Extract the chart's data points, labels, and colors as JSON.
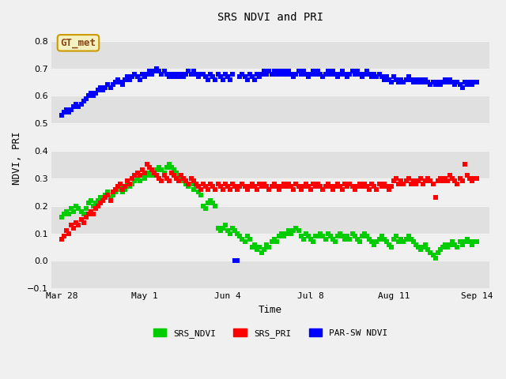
{
  "title": "SRS NDVI and PRI",
  "xlabel": "Time",
  "ylabel": "NDVI, PRI",
  "ylim": [
    -0.1,
    0.85
  ],
  "yticks": [
    -0.1,
    0.0,
    0.1,
    0.2,
    0.3,
    0.4,
    0.5,
    0.6,
    0.7,
    0.8
  ],
  "xtick_labels": [
    "Mar 28",
    "May 1",
    "Jun 4",
    "Jul 8",
    "Aug 11",
    "Sep 14"
  ],
  "xtick_days": [
    87,
    121,
    155,
    189,
    223,
    257
  ],
  "background_color": "#f0f0f0",
  "band_color": "#e0e0e0",
  "gt_met_label": "GT_met",
  "legend_labels": [
    "SRS_NDVI",
    "SRS_PRI",
    "PAR-SW NDVI"
  ],
  "legend_colors": [
    "#00cc00",
    "#ff0000",
    "#0000ff"
  ],
  "marker_size": 4,
  "ndvi_green": "#00cc00",
  "pri_red": "#ff0000",
  "par_blue": "#0000ff",
  "srs_ndvi": {
    "days": [
      87,
      88,
      89,
      90,
      91,
      92,
      93,
      94,
      95,
      96,
      97,
      98,
      99,
      100,
      101,
      102,
      103,
      104,
      105,
      106,
      107,
      108,
      109,
      110,
      111,
      112,
      113,
      114,
      115,
      116,
      117,
      118,
      119,
      120,
      121,
      122,
      123,
      124,
      125,
      126,
      127,
      128,
      129,
      130,
      131,
      132,
      133,
      134,
      135,
      136,
      137,
      138,
      139,
      140,
      141,
      142,
      143,
      144,
      145,
      146,
      147,
      148,
      149,
      150,
      151,
      152,
      153,
      154,
      155,
      156,
      157,
      158,
      159,
      160,
      161,
      162,
      163,
      164,
      165,
      166,
      167,
      168,
      169,
      170,
      171,
      172,
      173,
      174,
      175,
      176,
      177,
      178,
      179,
      180,
      181,
      182,
      183,
      184,
      185,
      186,
      187,
      188,
      189,
      190,
      191,
      192,
      193,
      194,
      195,
      196,
      197,
      198,
      199,
      200,
      201,
      202,
      203,
      204,
      205,
      206,
      207,
      208,
      209,
      210,
      211,
      212,
      213,
      214,
      215,
      216,
      217,
      218,
      219,
      220,
      221,
      222,
      223,
      224,
      225,
      226,
      227,
      228,
      229,
      230,
      231,
      232,
      233,
      234,
      235,
      236,
      237,
      238,
      239,
      240,
      241,
      242,
      243,
      244,
      245,
      246,
      247,
      248,
      249,
      250,
      251,
      252,
      253,
      254,
      255,
      256,
      257
    ],
    "values": [
      0.16,
      0.17,
      0.18,
      0.17,
      0.19,
      0.18,
      0.2,
      0.19,
      0.18,
      0.17,
      0.19,
      0.21,
      0.22,
      0.2,
      0.21,
      0.22,
      0.23,
      0.22,
      0.24,
      0.25,
      0.23,
      0.24,
      0.25,
      0.26,
      0.27,
      0.25,
      0.26,
      0.28,
      0.27,
      0.28,
      0.29,
      0.3,
      0.29,
      0.31,
      0.3,
      0.31,
      0.32,
      0.31,
      0.32,
      0.33,
      0.34,
      0.33,
      0.32,
      0.34,
      0.35,
      0.34,
      0.33,
      0.32,
      0.31,
      0.3,
      0.29,
      0.28,
      0.27,
      0.28,
      0.26,
      0.27,
      0.25,
      0.24,
      0.2,
      0.19,
      0.21,
      0.22,
      0.21,
      0.2,
      0.12,
      0.11,
      0.12,
      0.13,
      0.11,
      0.1,
      0.12,
      0.11,
      0.1,
      0.09,
      0.08,
      0.07,
      0.09,
      0.08,
      0.05,
      0.06,
      0.04,
      0.05,
      0.03,
      0.04,
      0.06,
      0.05,
      0.07,
      0.08,
      0.07,
      0.09,
      0.1,
      0.09,
      0.1,
      0.11,
      0.1,
      0.11,
      0.12,
      0.11,
      0.09,
      0.08,
      0.1,
      0.09,
      0.08,
      0.07,
      0.09,
      0.09,
      0.1,
      0.09,
      0.08,
      0.1,
      0.09,
      0.08,
      0.07,
      0.09,
      0.1,
      0.09,
      0.08,
      0.09,
      0.08,
      0.1,
      0.09,
      0.08,
      0.07,
      0.09,
      0.1,
      0.09,
      0.08,
      0.07,
      0.06,
      0.07,
      0.08,
      0.09,
      0.08,
      0.07,
      0.06,
      0.05,
      0.08,
      0.09,
      0.07,
      0.08,
      0.07,
      0.08,
      0.09,
      0.08,
      0.07,
      0.06,
      0.05,
      0.04,
      0.05,
      0.06,
      0.04,
      0.03,
      0.02,
      0.01,
      0.03,
      0.04,
      0.05,
      0.06,
      0.05,
      0.06,
      0.07,
      0.06,
      0.05,
      0.07,
      0.06,
      0.07,
      0.08,
      0.07,
      0.06,
      0.07,
      0.07
    ]
  },
  "srs_pri": {
    "days": [
      87,
      88,
      89,
      90,
      91,
      92,
      93,
      94,
      95,
      96,
      97,
      98,
      99,
      100,
      101,
      102,
      103,
      104,
      105,
      106,
      107,
      108,
      109,
      110,
      111,
      112,
      113,
      114,
      115,
      116,
      117,
      118,
      119,
      120,
      121,
      122,
      123,
      124,
      125,
      126,
      127,
      128,
      129,
      130,
      131,
      132,
      133,
      134,
      135,
      136,
      137,
      138,
      139,
      140,
      141,
      142,
      143,
      144,
      145,
      146,
      147,
      148,
      149,
      150,
      151,
      152,
      153,
      154,
      155,
      156,
      157,
      158,
      159,
      160,
      161,
      162,
      163,
      164,
      165,
      166,
      167,
      168,
      169,
      170,
      171,
      172,
      173,
      174,
      175,
      176,
      177,
      178,
      179,
      180,
      181,
      182,
      183,
      184,
      185,
      186,
      187,
      188,
      189,
      190,
      191,
      192,
      193,
      194,
      195,
      196,
      197,
      198,
      199,
      200,
      201,
      202,
      203,
      204,
      205,
      206,
      207,
      208,
      209,
      210,
      211,
      212,
      213,
      214,
      215,
      216,
      217,
      218,
      219,
      220,
      221,
      222,
      223,
      224,
      225,
      226,
      227,
      228,
      229,
      230,
      231,
      232,
      233,
      234,
      235,
      236,
      237,
      238,
      239,
      240,
      241,
      242,
      243,
      244,
      245,
      246,
      247,
      248,
      249,
      250,
      251,
      252,
      253,
      254,
      255,
      256,
      257
    ],
    "values": [
      0.08,
      0.09,
      0.11,
      0.1,
      0.13,
      0.12,
      0.14,
      0.13,
      0.15,
      0.14,
      0.16,
      0.17,
      0.18,
      0.17,
      0.19,
      0.2,
      0.21,
      0.22,
      0.23,
      0.24,
      0.22,
      0.25,
      0.26,
      0.27,
      0.28,
      0.26,
      0.27,
      0.29,
      0.28,
      0.3,
      0.31,
      0.32,
      0.31,
      0.33,
      0.32,
      0.35,
      0.34,
      0.33,
      0.32,
      0.31,
      0.3,
      0.29,
      0.31,
      0.3,
      0.29,
      0.32,
      0.31,
      0.3,
      0.29,
      0.31,
      0.3,
      0.29,
      0.28,
      0.3,
      0.29,
      0.28,
      0.27,
      0.26,
      0.28,
      0.27,
      0.26,
      0.28,
      0.27,
      0.26,
      0.28,
      0.27,
      0.26,
      0.28,
      0.27,
      0.26,
      0.28,
      0.27,
      0.26,
      0.27,
      0.28,
      0.27,
      0.26,
      0.27,
      0.28,
      0.27,
      0.26,
      0.28,
      0.27,
      0.28,
      0.27,
      0.26,
      0.27,
      0.28,
      0.27,
      0.26,
      0.27,
      0.28,
      0.27,
      0.28,
      0.27,
      0.26,
      0.28,
      0.27,
      0.26,
      0.27,
      0.28,
      0.27,
      0.26,
      0.28,
      0.27,
      0.28,
      0.27,
      0.26,
      0.27,
      0.28,
      0.27,
      0.26,
      0.27,
      0.28,
      0.27,
      0.26,
      0.28,
      0.27,
      0.28,
      0.27,
      0.26,
      0.27,
      0.28,
      0.27,
      0.28,
      0.27,
      0.26,
      0.28,
      0.27,
      0.26,
      0.28,
      0.27,
      0.28,
      0.27,
      0.26,
      0.27,
      0.29,
      0.3,
      0.28,
      0.29,
      0.28,
      0.29,
      0.3,
      0.28,
      0.29,
      0.28,
      0.29,
      0.3,
      0.28,
      0.29,
      0.3,
      0.29,
      0.28,
      0.23,
      0.29,
      0.3,
      0.29,
      0.3,
      0.29,
      0.31,
      0.3,
      0.29,
      0.28,
      0.3,
      0.29,
      0.35,
      0.31,
      0.3,
      0.29,
      0.3,
      0.3
    ]
  },
  "par_ndvi": {
    "days": [
      87,
      88,
      89,
      90,
      91,
      92,
      93,
      94,
      95,
      96,
      97,
      98,
      99,
      100,
      101,
      102,
      103,
      104,
      105,
      106,
      107,
      108,
      109,
      110,
      111,
      112,
      113,
      114,
      115,
      116,
      117,
      118,
      119,
      120,
      121,
      122,
      123,
      124,
      125,
      126,
      127,
      128,
      129,
      130,
      131,
      132,
      133,
      134,
      135,
      136,
      137,
      138,
      139,
      140,
      141,
      142,
      143,
      144,
      145,
      146,
      147,
      148,
      149,
      150,
      151,
      152,
      153,
      154,
      155,
      156,
      157,
      158,
      159,
      160,
      161,
      162,
      163,
      164,
      165,
      166,
      167,
      168,
      169,
      170,
      171,
      172,
      173,
      174,
      175,
      176,
      177,
      178,
      179,
      180,
      181,
      182,
      183,
      184,
      185,
      186,
      187,
      188,
      189,
      190,
      191,
      192,
      193,
      194,
      195,
      196,
      197,
      198,
      199,
      200,
      201,
      202,
      203,
      204,
      205,
      206,
      207,
      208,
      209,
      210,
      211,
      212,
      213,
      214,
      215,
      216,
      217,
      218,
      219,
      220,
      221,
      222,
      223,
      224,
      225,
      226,
      227,
      228,
      229,
      230,
      231,
      232,
      233,
      234,
      235,
      236,
      237,
      238,
      239,
      240,
      241,
      242,
      243,
      244,
      245,
      246,
      247,
      248,
      249,
      250,
      251,
      252,
      253,
      254,
      255,
      256,
      257
    ],
    "values": [
      0.53,
      0.54,
      0.55,
      0.54,
      0.55,
      0.56,
      0.57,
      0.56,
      0.57,
      0.58,
      0.59,
      0.6,
      0.61,
      0.6,
      0.61,
      0.62,
      0.63,
      0.62,
      0.63,
      0.64,
      0.63,
      0.64,
      0.65,
      0.66,
      0.65,
      0.64,
      0.66,
      0.67,
      0.66,
      0.67,
      0.68,
      0.67,
      0.66,
      0.68,
      0.67,
      0.68,
      0.69,
      0.68,
      0.69,
      0.7,
      0.69,
      0.68,
      0.69,
      0.68,
      0.67,
      0.68,
      0.67,
      0.68,
      0.67,
      0.68,
      0.67,
      0.68,
      0.69,
      0.68,
      0.69,
      0.68,
      0.67,
      0.68,
      0.68,
      0.67,
      0.66,
      0.68,
      0.67,
      0.66,
      0.68,
      0.67,
      0.66,
      0.68,
      0.67,
      0.66,
      0.68,
      0.0,
      0.0,
      0.67,
      0.68,
      0.67,
      0.66,
      0.68,
      0.67,
      0.66,
      0.68,
      0.67,
      0.68,
      0.69,
      0.68,
      0.69,
      0.68,
      0.69,
      0.68,
      0.69,
      0.68,
      0.69,
      0.68,
      0.69,
      0.68,
      0.67,
      0.68,
      0.69,
      0.68,
      0.69,
      0.68,
      0.67,
      0.68,
      0.69,
      0.68,
      0.69,
      0.68,
      0.67,
      0.68,
      0.69,
      0.68,
      0.69,
      0.68,
      0.67,
      0.68,
      0.69,
      0.68,
      0.67,
      0.68,
      0.69,
      0.68,
      0.69,
      0.68,
      0.67,
      0.68,
      0.69,
      0.68,
      0.67,
      0.68,
      0.67,
      0.68,
      0.67,
      0.66,
      0.67,
      0.66,
      0.65,
      0.67,
      0.66,
      0.65,
      0.66,
      0.65,
      0.66,
      0.67,
      0.66,
      0.65,
      0.66,
      0.65,
      0.66,
      0.65,
      0.66,
      0.65,
      0.64,
      0.65,
      0.64,
      0.65,
      0.64,
      0.65,
      0.66,
      0.65,
      0.66,
      0.65,
      0.64,
      0.65,
      0.64,
      0.63,
      0.65,
      0.64,
      0.65,
      0.64,
      0.65,
      0.65
    ]
  }
}
